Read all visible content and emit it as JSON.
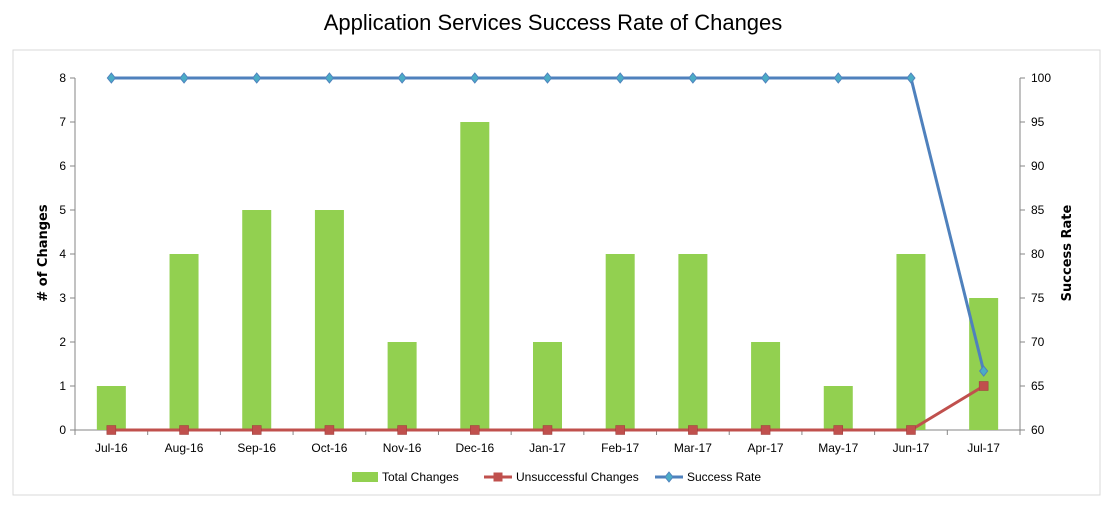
{
  "chart_data": {
    "type": "bar",
    "title": "Application Services Success Rate of Changes",
    "xlabel": "",
    "ylabel": "# of Changes",
    "y2label": "Success Rate",
    "categories": [
      "Jul-16",
      "Aug-16",
      "Sep-16",
      "Oct-16",
      "Nov-16",
      "Dec-16",
      "Jan-17",
      "Feb-17",
      "Mar-17",
      "Apr-17",
      "May-17",
      "Jun-17",
      "Jul-17"
    ],
    "ylim": [
      0,
      8
    ],
    "y2lim": [
      60,
      100
    ],
    "yticks": [
      "0",
      "1",
      "2",
      "3",
      "4",
      "5",
      "6",
      "7",
      "8"
    ],
    "y2ticks": [
      "60",
      "65",
      "70",
      "75",
      "80",
      "85",
      "90",
      "95",
      "100"
    ],
    "grid": false,
    "legend_position": "bottom",
    "series": [
      {
        "name": "Total Changes",
        "type": "bar",
        "axis": "left",
        "color": "#92d050",
        "values": [
          1,
          4,
          5,
          5,
          2,
          7,
          2,
          4,
          4,
          2,
          1,
          4,
          3
        ]
      },
      {
        "name": "Unsuccessful Changes",
        "type": "line",
        "axis": "left",
        "color": "#c0504d",
        "marker": "square",
        "values": [
          0,
          0,
          0,
          0,
          0,
          0,
          0,
          0,
          0,
          0,
          0,
          0,
          1
        ]
      },
      {
        "name": "Success Rate",
        "type": "line",
        "axis": "right",
        "color": "#4f81bd",
        "marker": "diamond",
        "values": [
          100,
          100,
          100,
          100,
          100,
          100,
          100,
          100,
          100,
          100,
          100,
          100,
          66.7
        ]
      }
    ]
  }
}
